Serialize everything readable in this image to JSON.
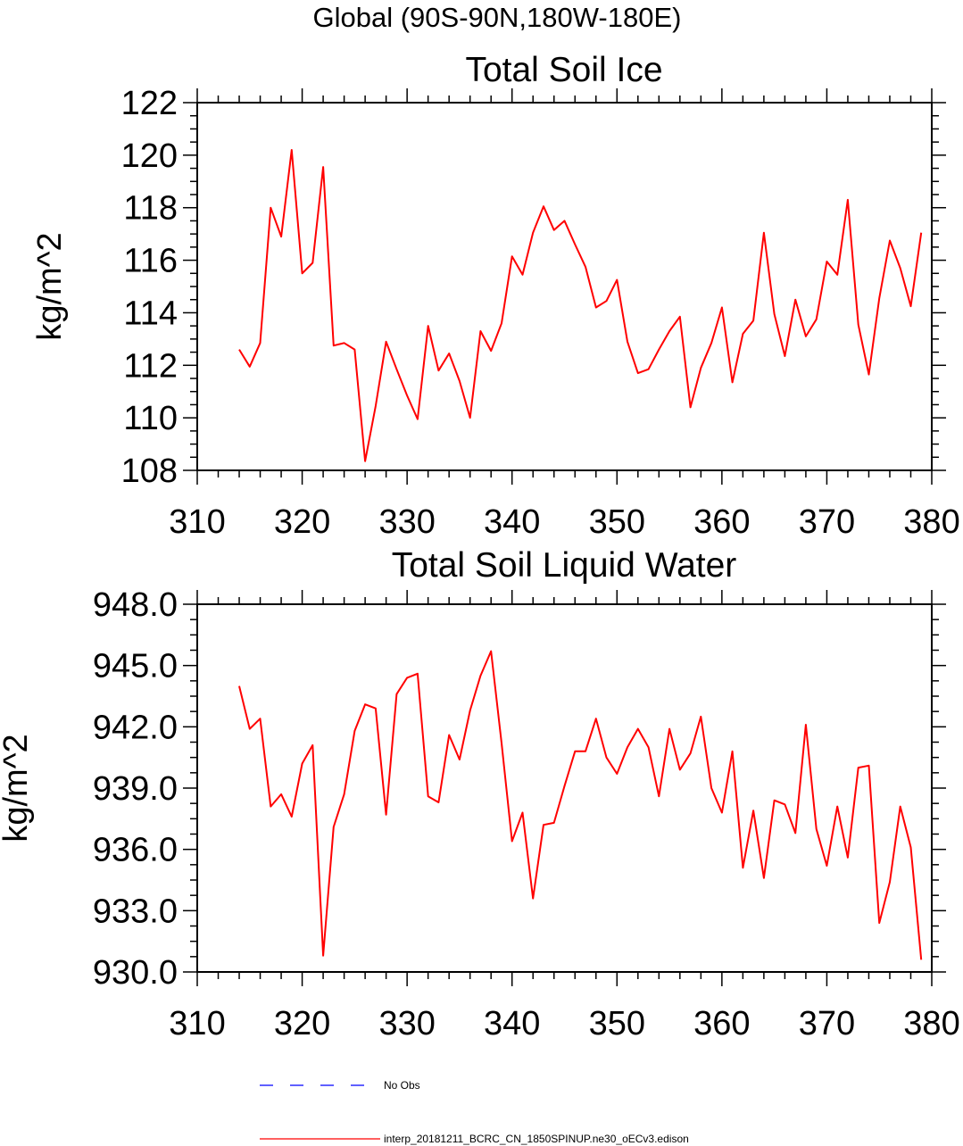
{
  "figure_title": "Global (90S-90N,180W-180E)",
  "legend": [
    {
      "label": "No Obs",
      "color": "#0000ff",
      "dash": true
    },
    {
      "label": "interp_20181211_BCRC_CN_1850SPINUP.ne30_oECv3.edison",
      "color": "#ff0000",
      "dash": false
    }
  ],
  "chart_data": [
    {
      "type": "line",
      "title": "Total Soil Ice",
      "xlabel": "",
      "ylabel": "kg/m^2",
      "xlim": [
        310,
        380
      ],
      "ylim": [
        108,
        122
      ],
      "xticks": [
        310,
        320,
        330,
        340,
        350,
        360,
        370,
        380
      ],
      "yticks": [
        108,
        110,
        112,
        114,
        116,
        118,
        120,
        122
      ],
      "ytick_labels": [
        "108",
        "110",
        "112",
        "114",
        "116",
        "118",
        "120",
        "122"
      ],
      "grid": false,
      "series": [
        {
          "color": "#ff0000",
          "x": [
            314,
            315,
            316,
            317,
            318,
            319,
            320,
            321,
            322,
            323,
            324,
            325,
            326,
            327,
            328,
            329,
            330,
            331,
            332,
            333,
            334,
            335,
            336,
            337,
            338,
            339,
            340,
            341,
            342,
            343,
            344,
            345,
            346,
            347,
            348,
            349,
            350,
            351,
            352,
            353,
            354,
            355,
            356,
            357,
            358,
            359,
            360,
            361,
            362,
            363,
            364,
            365,
            366,
            367,
            368,
            369,
            370,
            371,
            372,
            373,
            374,
            375,
            376,
            377,
            378,
            379
          ],
          "y": [
            112.6,
            111.95,
            112.85,
            118.0,
            116.9,
            120.2,
            115.5,
            115.9,
            119.55,
            112.75,
            112.85,
            112.6,
            108.35,
            110.45,
            112.9,
            111.85,
            110.85,
            109.95,
            113.5,
            111.8,
            112.45,
            111.4,
            110.0,
            113.3,
            112.55,
            113.6,
            116.15,
            115.45,
            117.05,
            118.05,
            117.15,
            117.5,
            116.6,
            115.75,
            114.2,
            114.45,
            115.25,
            112.9,
            111.7,
            111.85,
            112.6,
            113.3,
            113.85,
            110.4,
            111.9,
            112.85,
            114.2,
            111.35,
            113.2,
            113.7,
            117.05,
            113.95,
            112.35,
            114.5,
            113.1,
            113.75,
            115.95,
            115.45,
            118.3,
            113.55,
            111.65,
            114.55,
            116.75,
            115.7,
            114.25,
            117.05
          ]
        }
      ]
    },
    {
      "type": "line",
      "title": "Total Soil Liquid Water",
      "xlabel": "",
      "ylabel": "kg/m^2",
      "xlim": [
        310,
        380
      ],
      "ylim": [
        930,
        948
      ],
      "xticks": [
        310,
        320,
        330,
        340,
        350,
        360,
        370,
        380
      ],
      "yticks": [
        930,
        933,
        936,
        939,
        942,
        945,
        948
      ],
      "ytick_labels": [
        "930.0",
        "933.0",
        "936.0",
        "939.0",
        "942.0",
        "945.0",
        "948.0"
      ],
      "grid": false,
      "series": [
        {
          "color": "#ff0000",
          "x": [
            314,
            315,
            316,
            317,
            318,
            319,
            320,
            321,
            322,
            323,
            324,
            325,
            326,
            327,
            328,
            329,
            330,
            331,
            332,
            333,
            334,
            335,
            336,
            337,
            338,
            339,
            340,
            341,
            342,
            343,
            344,
            345,
            346,
            347,
            348,
            349,
            350,
            351,
            352,
            353,
            354,
            355,
            356,
            357,
            358,
            359,
            360,
            361,
            362,
            363,
            364,
            365,
            366,
            367,
            368,
            369,
            370,
            371,
            372,
            373,
            374,
            375,
            376,
            377,
            378,
            379
          ],
          "y": [
            944.0,
            941.9,
            942.4,
            938.1,
            938.7,
            937.6,
            940.2,
            941.1,
            930.8,
            937.1,
            938.7,
            941.8,
            943.1,
            942.9,
            937.7,
            943.6,
            944.4,
            944.6,
            938.6,
            938.3,
            941.6,
            940.4,
            942.8,
            944.5,
            945.7,
            941.2,
            936.4,
            937.8,
            933.6,
            937.2,
            937.3,
            939.1,
            940.8,
            940.8,
            942.4,
            940.5,
            939.7,
            941.0,
            941.9,
            941.0,
            938.6,
            941.9,
            939.9,
            940.7,
            942.5,
            939.0,
            937.8,
            940.8,
            935.1,
            937.9,
            934.6,
            938.4,
            938.2,
            936.8,
            942.1,
            937.0,
            935.2,
            938.1,
            935.6,
            940.0,
            940.1,
            932.4,
            934.4,
            938.1,
            936.1,
            930.6
          ]
        }
      ]
    }
  ]
}
